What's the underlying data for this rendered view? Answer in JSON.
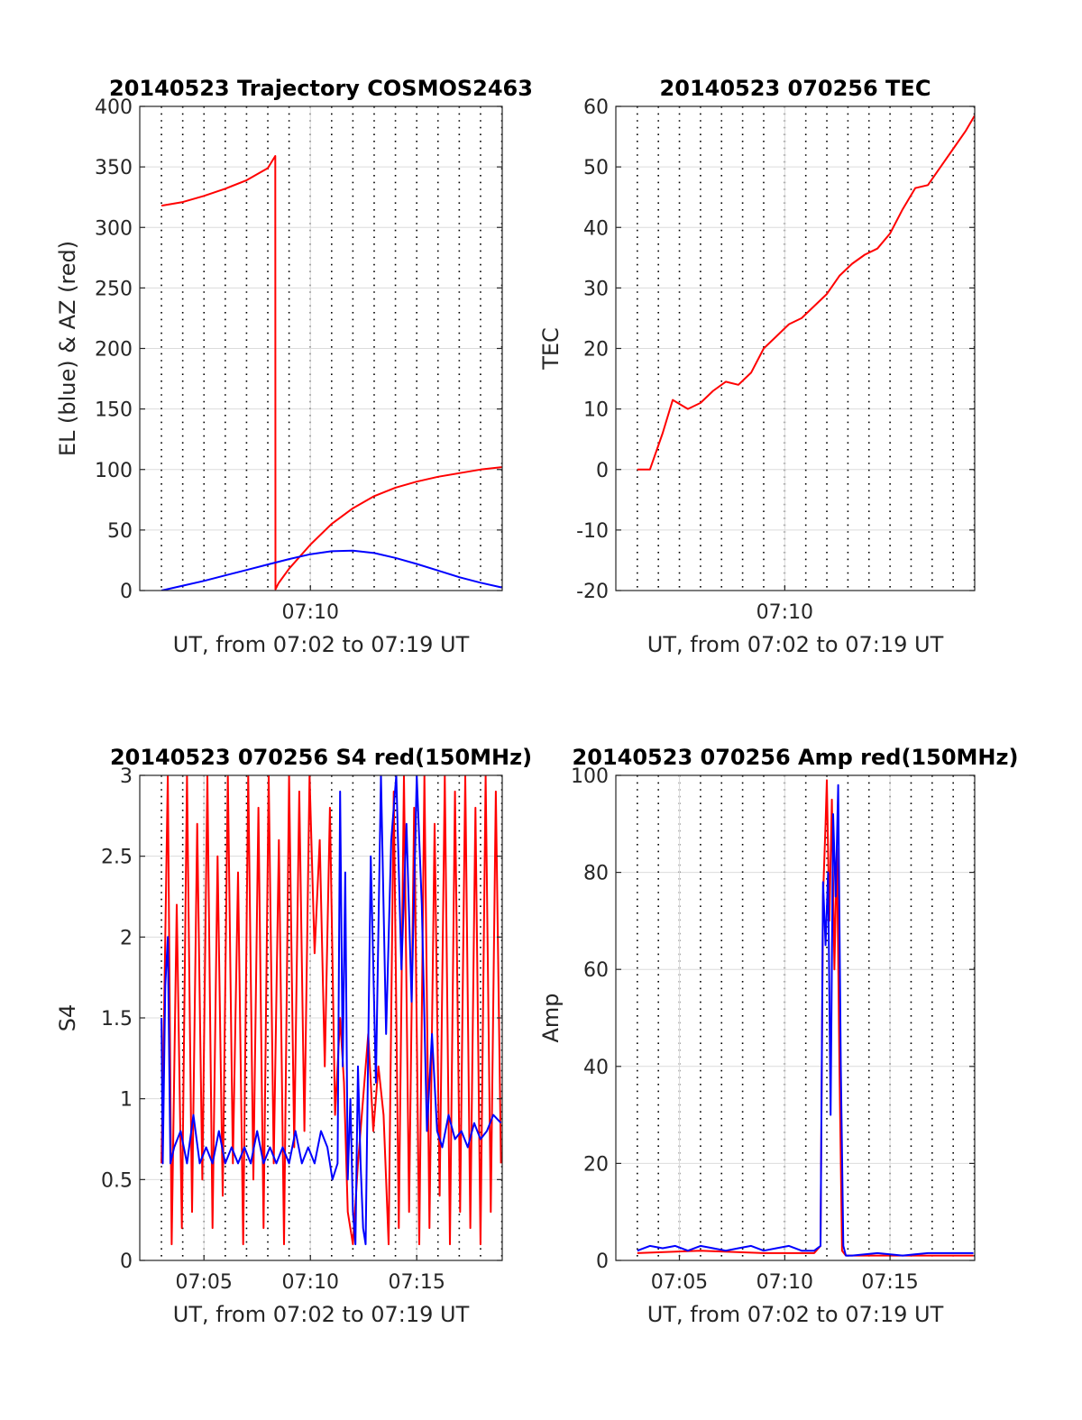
{
  "chart_data": [
    {
      "type": "line",
      "title": "20140523 Trajectory COSMOS2463",
      "xlabel": "UT, from 07:02 to 07:19 UT",
      "ylabel": "EL (blue) & AZ (red)",
      "xlim": [
        7.033,
        7.317
      ],
      "ylim": [
        0,
        400
      ],
      "yticks": [
        0,
        50,
        100,
        150,
        200,
        250,
        300,
        350,
        400
      ],
      "xticks": [
        {
          "value": 7.1667,
          "label": "07:10"
        }
      ],
      "grid": true,
      "series": [
        {
          "color": "#ff0000",
          "x": [
            7.05,
            7.0667,
            7.0833,
            7.1,
            7.1167,
            7.1333,
            7.1392,
            7.1393,
            7.1417,
            7.15,
            7.1667,
            7.1833,
            7.2,
            7.2167,
            7.2333,
            7.25,
            7.2667,
            7.2833,
            7.3,
            7.3167
          ],
          "values": [
            318,
            321,
            326,
            332,
            339,
            349,
            359,
            1,
            6,
            18,
            38,
            55,
            68,
            78,
            85,
            90,
            94,
            97,
            100,
            102
          ]
        },
        {
          "color": "#0000ff",
          "x": [
            7.05,
            7.0667,
            7.0833,
            7.1,
            7.1167,
            7.1333,
            7.15,
            7.1667,
            7.1833,
            7.2,
            7.2167,
            7.2333,
            7.25,
            7.2667,
            7.2833,
            7.3,
            7.3167
          ],
          "values": [
            0,
            4,
            8,
            12.5,
            17,
            21.5,
            26,
            30,
            32.5,
            33,
            31,
            27,
            22,
            16.5,
            11,
            6.5,
            2.5
          ]
        }
      ]
    },
    {
      "type": "line",
      "title": "20140523 070256 TEC",
      "xlabel": "UT, from 07:02 to 07:19 UT",
      "ylabel": "TEC",
      "xlim": [
        7.033,
        7.317
      ],
      "ylim": [
        -20,
        60
      ],
      "yticks": [
        -20,
        -10,
        0,
        10,
        20,
        30,
        40,
        50,
        60
      ],
      "xticks": [
        {
          "value": 7.1667,
          "label": "07:10"
        }
      ],
      "grid": true,
      "series": [
        {
          "color": "#ff0000",
          "x": [
            7.05,
            7.06,
            7.07,
            7.078,
            7.09,
            7.1,
            7.11,
            7.12,
            7.13,
            7.14,
            7.15,
            7.16,
            7.17,
            7.18,
            7.19,
            7.2,
            7.21,
            7.22,
            7.23,
            7.24,
            7.25,
            7.26,
            7.27,
            7.28,
            7.29,
            7.3,
            7.31,
            7.317
          ],
          "values": [
            0,
            0,
            6,
            11.5,
            10,
            11,
            13,
            14.5,
            14,
            16,
            20,
            22,
            24,
            25,
            27,
            29,
            32,
            34,
            35.5,
            36.5,
            39,
            43,
            46.5,
            47,
            50,
            53,
            56,
            58.5
          ]
        }
      ]
    },
    {
      "type": "line",
      "title": "20140523 070256 S4 red(150MHz)",
      "xlabel": "UT, from 07:02 to 07:19 UT",
      "ylabel": "S4",
      "xlim": [
        7.033,
        7.317
      ],
      "ylim": [
        0,
        3
      ],
      "yticks": [
        0,
        0.5,
        1,
        1.5,
        2,
        2.5,
        3
      ],
      "xticks": [
        {
          "value": 7.0833,
          "label": "07:05"
        },
        {
          "value": 7.1667,
          "label": "07:10"
        },
        {
          "value": 7.25,
          "label": "07:15"
        }
      ],
      "grid": true,
      "series": [
        {
          "color": "#ff0000",
          "x": [
            7.05,
            7.052,
            7.055,
            7.058,
            7.062,
            7.066,
            7.07,
            7.074,
            7.078,
            7.082,
            7.086,
            7.09,
            7.094,
            7.098,
            7.102,
            7.106,
            7.11,
            7.114,
            7.118,
            7.122,
            7.126,
            7.13,
            7.134,
            7.138,
            7.142,
            7.146,
            7.15,
            7.154,
            7.158,
            7.162,
            7.166,
            7.17,
            7.174,
            7.178,
            7.182,
            7.186,
            7.19,
            7.193,
            7.196,
            7.2,
            7.204,
            7.208,
            7.212,
            7.216,
            7.22,
            7.224,
            7.228,
            7.232,
            7.236,
            7.24,
            7.244,
            7.248,
            7.252,
            7.256,
            7.26,
            7.264,
            7.268,
            7.272,
            7.276,
            7.28,
            7.284,
            7.288,
            7.292,
            7.296,
            7.3,
            7.304,
            7.308,
            7.312,
            7.316
          ],
          "values": [
            0.6,
            1.5,
            3,
            0.1,
            2.2,
            0.2,
            3,
            0.3,
            2.7,
            0.5,
            3,
            0.2,
            2.5,
            0.4,
            3,
            0.6,
            2.4,
            0.1,
            3,
            0.5,
            2.8,
            0.2,
            3,
            0.6,
            2.6,
            0.1,
            3,
            0.7,
            2.9,
            0.8,
            3,
            1.9,
            2.6,
            1.2,
            2.8,
            0.9,
            1.5,
            1.1,
            0.3,
            0.1,
            0.6,
            1.0,
            1.4,
            0.8,
            1.2,
            0.9,
            0.1,
            2.9,
            0.2,
            3,
            0.3,
            2.8,
            0.1,
            3,
            0.2,
            2.7,
            0.4,
            3,
            0.1,
            2.9,
            0.3,
            3,
            0.2,
            2.8,
            0.1,
            3,
            0.3,
            2.9,
            0.6
          ]
        },
        {
          "color": "#0000ff",
          "x": [
            7.05,
            7.051,
            7.053,
            7.055,
            7.057,
            7.06,
            7.065,
            7.07,
            7.075,
            7.08,
            7.085,
            7.09,
            7.095,
            7.1,
            7.105,
            7.11,
            7.115,
            7.12,
            7.125,
            7.13,
            7.135,
            7.14,
            7.145,
            7.15,
            7.155,
            7.16,
            7.165,
            7.17,
            7.175,
            7.18,
            7.184,
            7.188,
            7.19,
            7.192,
            7.194,
            7.196,
            7.198,
            7.2,
            7.202,
            7.204,
            7.206,
            7.208,
            7.21,
            7.214,
            7.218,
            7.222,
            7.226,
            7.23,
            7.234,
            7.238,
            7.242,
            7.246,
            7.25,
            7.254,
            7.258,
            7.262,
            7.266,
            7.27,
            7.275,
            7.28,
            7.285,
            7.29,
            7.295,
            7.3,
            7.305,
            7.31,
            7.316
          ],
          "values": [
            1.5,
            0.6,
            1.7,
            2.0,
            0.6,
            0.7,
            0.8,
            0.6,
            0.9,
            0.6,
            0.7,
            0.6,
            0.8,
            0.6,
            0.7,
            0.6,
            0.7,
            0.6,
            0.8,
            0.6,
            0.7,
            0.6,
            0.7,
            0.6,
            0.8,
            0.6,
            0.7,
            0.6,
            0.8,
            0.7,
            0.5,
            0.6,
            2.9,
            1.2,
            2.4,
            0.5,
            1.0,
            0.3,
            0.1,
            1.2,
            0.6,
            0.2,
            0.1,
            2.5,
            1.1,
            3,
            1.4,
            2.6,
            3,
            1.8,
            2.7,
            1.6,
            3,
            2.2,
            0.8,
            1.4,
            0.8,
            0.7,
            0.9,
            0.75,
            0.8,
            0.7,
            0.85,
            0.75,
            0.8,
            0.9,
            0.85
          ]
        }
      ]
    },
    {
      "type": "line",
      "title": "20140523 070256 Amp red(150MHz)",
      "xlabel": "UT, from 07:02 to 07:19 UT",
      "ylabel": "Amp",
      "xlim": [
        7.033,
        7.317
      ],
      "ylim": [
        0,
        100
      ],
      "yticks": [
        0,
        20,
        40,
        60,
        80,
        100
      ],
      "xticks": [
        {
          "value": 7.0833,
          "label": "07:05"
        },
        {
          "value": 7.1667,
          "label": "07:10"
        },
        {
          "value": 7.25,
          "label": "07:15"
        }
      ],
      "grid": true,
      "series": [
        {
          "color": "#ff0000",
          "x": [
            7.05,
            7.1,
            7.15,
            7.19,
            7.195,
            7.197,
            7.199,
            7.2,
            7.202,
            7.204,
            7.206,
            7.208,
            7.21,
            7.212,
            7.215,
            7.25,
            7.3,
            7.316
          ],
          "values": [
            1.5,
            2,
            1.5,
            1.5,
            3,
            75,
            90,
            99,
            70,
            95,
            60,
            85,
            40,
            2,
            1,
            1,
            1,
            1
          ]
        },
        {
          "color": "#0000ff",
          "x": [
            7.05,
            7.06,
            7.07,
            7.08,
            7.09,
            7.1,
            7.11,
            7.12,
            7.13,
            7.14,
            7.15,
            7.16,
            7.17,
            7.18,
            7.19,
            7.195,
            7.197,
            7.199,
            7.201,
            7.203,
            7.205,
            7.207,
            7.209,
            7.211,
            7.213,
            7.215,
            7.22,
            7.24,
            7.26,
            7.28,
            7.3,
            7.316
          ],
          "values": [
            2,
            3,
            2.5,
            3,
            2,
            3,
            2.5,
            2,
            2.5,
            3,
            2,
            2.5,
            3,
            2,
            2,
            3,
            78,
            65,
            80,
            30,
            92,
            75,
            98,
            40,
            3,
            1,
            1,
            1.5,
            1,
            1.5,
            1.5,
            1.5
          ]
        }
      ]
    }
  ]
}
